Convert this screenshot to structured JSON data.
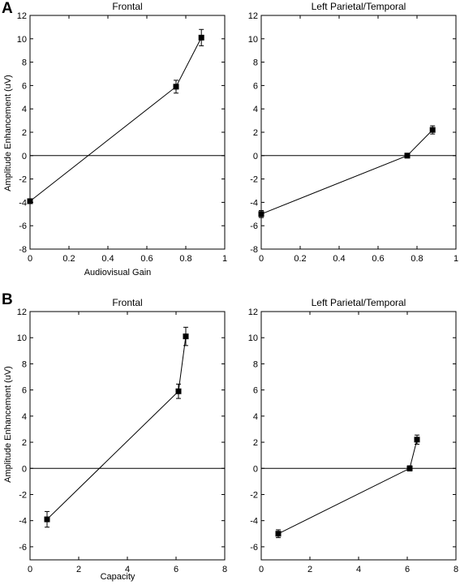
{
  "panels": {
    "A": {
      "label": "A"
    },
    "B": {
      "label": "B"
    }
  },
  "ylabel_A": "Amplitude Enhancement  (uV)",
  "ylabel_B": "Amplitude Enhancement  (uV)",
  "xlabel_A": "Audiovisual Gain",
  "xlabel_B": "Capacity",
  "chart_data": [
    {
      "type": "line",
      "panel": "A",
      "title": "Frontal",
      "xlabel": "Audiovisual Gain",
      "ylabel": "Amplitude Enhancement  (uV)",
      "xlim": [
        0,
        1
      ],
      "ylim": [
        -8,
        12
      ],
      "xticks": [
        "0",
        "0.2",
        "0.4",
        "0.6",
        "0.8",
        "1"
      ],
      "yticks": [
        "-8",
        "-6",
        "-4",
        "-2",
        "0",
        "2",
        "4",
        "6",
        "8",
        "10",
        "12"
      ],
      "reference_line_y": 0,
      "grid": false,
      "x": [
        0.0,
        0.75,
        0.88
      ],
      "y": [
        -3.9,
        5.9,
        10.1
      ],
      "error": [
        0.0,
        0.55,
        0.7
      ],
      "marker": "square",
      "color": "#000000"
    },
    {
      "type": "line",
      "panel": "A",
      "title": "Left Parietal/Temporal",
      "xlabel": "",
      "ylabel": "",
      "xlim": [
        0,
        1
      ],
      "ylim": [
        -8,
        12
      ],
      "xticks": [
        "0",
        "0.2",
        "0.4",
        "0.6",
        "0.8",
        "1"
      ],
      "yticks": [
        "-8",
        "-6",
        "-4",
        "-2",
        "0",
        "2",
        "4",
        "6",
        "8",
        "10",
        "12"
      ],
      "reference_line_y": 0,
      "grid": false,
      "x": [
        0.0,
        0.75,
        0.88
      ],
      "y": [
        -5.0,
        0.0,
        2.2
      ],
      "error": [
        0.3,
        0.2,
        0.35
      ],
      "marker": "square",
      "color": "#000000"
    },
    {
      "type": "line",
      "panel": "B",
      "title": "Frontal",
      "xlabel": "Capacity",
      "ylabel": "Amplitude Enhancement  (uV)",
      "xlim": [
        0,
        8
      ],
      "ylim": [
        -7,
        12
      ],
      "xticks": [
        "0",
        "2",
        "4",
        "6",
        "8"
      ],
      "yticks": [
        "-6",
        "-4",
        "-2",
        "0",
        "2",
        "4",
        "6",
        "8",
        "10",
        "12"
      ],
      "reference_line_y": 0,
      "grid": false,
      "x": [
        0.7,
        6.1,
        6.4
      ],
      "y": [
        -3.9,
        5.9,
        10.1
      ],
      "error": [
        0.6,
        0.55,
        0.7
      ],
      "marker": "square",
      "color": "#000000"
    },
    {
      "type": "line",
      "panel": "B",
      "title": "Left Parietal/Temporal",
      "xlabel": "",
      "ylabel": "",
      "xlim": [
        0,
        8
      ],
      "ylim": [
        -7,
        12
      ],
      "xticks": [
        "0",
        "2",
        "4",
        "6",
        "8"
      ],
      "yticks": [
        "-6",
        "-4",
        "-2",
        "0",
        "2",
        "4",
        "6",
        "8",
        "10",
        "12"
      ],
      "reference_line_y": 0,
      "grid": false,
      "x": [
        0.7,
        6.1,
        6.4
      ],
      "y": [
        -5.0,
        0.0,
        2.2
      ],
      "error": [
        0.3,
        0.2,
        0.35
      ],
      "marker": "square",
      "color": "#000000"
    }
  ]
}
